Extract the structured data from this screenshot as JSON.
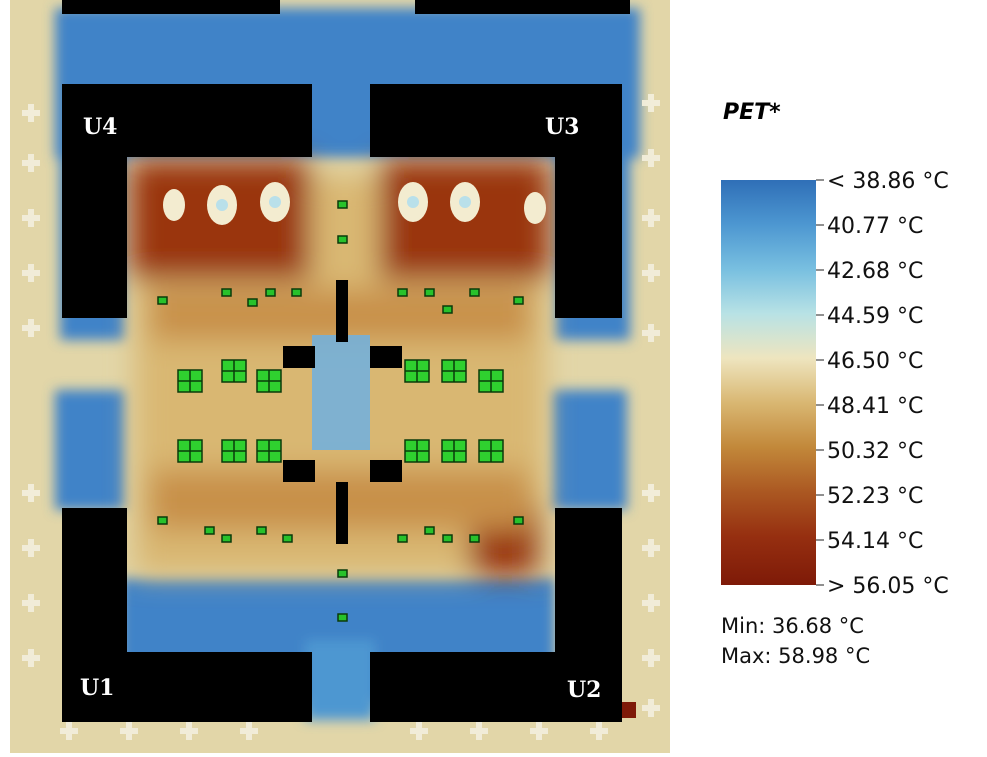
{
  "chart_data": {
    "type": "heatmap",
    "title": "PET*",
    "colorbar": {
      "ticks": [
        "< 38.86 °C",
        "40.77  °C",
        "42.68  °C",
        "44.59  °C",
        "46.50  °C",
        "48.41  °C",
        "50.32  °C",
        "52.23  °C",
        "54.14  °C",
        "> 56.05 °C"
      ],
      "values": [
        38.86,
        40.77,
        42.68,
        44.59,
        46.5,
        48.41,
        50.32,
        52.23,
        54.14,
        56.05
      ],
      "colors": [
        "#2f6fb7",
        "#4d97d1",
        "#78bfe0",
        "#b8e2e5",
        "#eee5bf",
        "#d9b772",
        "#c2883a",
        "#ab5822",
        "#962f10",
        "#7e1a08"
      ]
    },
    "min_label": "Min: 36.68 °C",
    "max_label": "Max: 58.98 °C",
    "buildings": [
      "U4",
      "U3",
      "U1",
      "U2"
    ]
  }
}
